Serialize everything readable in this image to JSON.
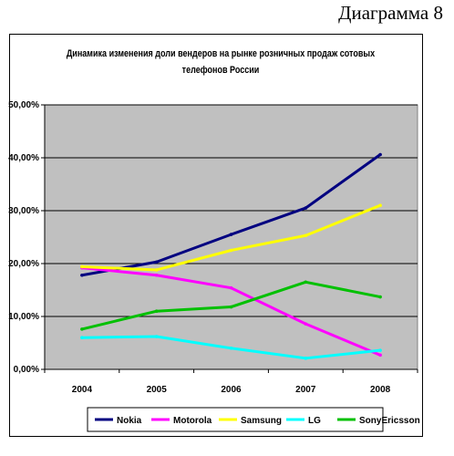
{
  "caption": "Диаграмма 8",
  "chart_data": {
    "type": "line",
    "title_line1": "Динамика изменения доли вендеров на рынке розничных продаж сотовых",
    "title_line2": "телефонов России",
    "x": [
      "2004",
      "2005",
      "2006",
      "2007",
      "2008"
    ],
    "ylim": [
      0,
      50
    ],
    "yticks": [
      "0,00%",
      "10,00%",
      "20,00%",
      "30,00%",
      "40,00%",
      "50,00%"
    ],
    "grid": true,
    "legend_position": "bottom",
    "series": [
      {
        "name": "Nokia",
        "color": "#000080",
        "values": [
          17.8,
          20.3,
          25.5,
          30.5,
          40.6
        ]
      },
      {
        "name": "Motorola",
        "color": "#ff00ff",
        "values": [
          19.2,
          17.8,
          15.4,
          8.6,
          2.7
        ]
      },
      {
        "name": "Samsung",
        "color": "#ffff00",
        "values": [
          19.4,
          18.8,
          22.5,
          25.3,
          31.0
        ]
      },
      {
        "name": "LG",
        "color": "#00ffff",
        "values": [
          6.0,
          6.2,
          4.0,
          2.1,
          3.6
        ]
      },
      {
        "name": "SonyEricsson",
        "color": "#00c000",
        "values": [
          7.6,
          11.0,
          11.8,
          16.5,
          13.7
        ]
      }
    ]
  }
}
